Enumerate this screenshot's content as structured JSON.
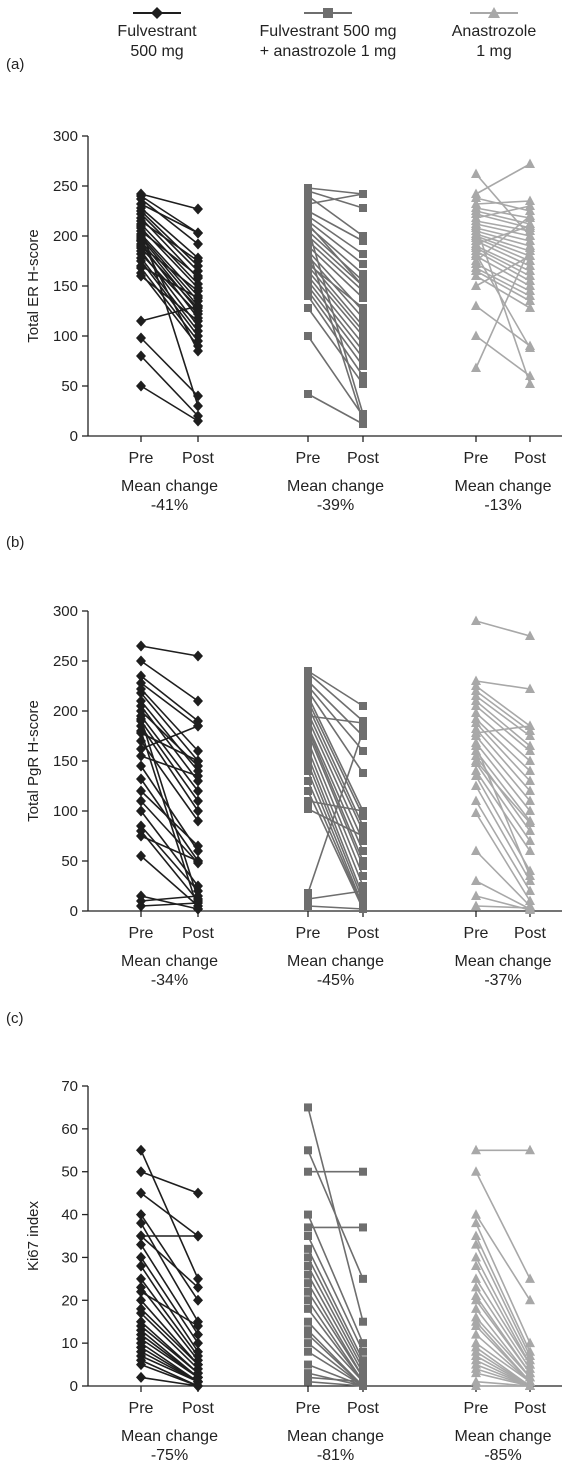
{
  "legend": [
    {
      "line1": "Fulvestrant",
      "line2": "500 mg",
      "marker": "diamond",
      "color": "#1e1e1e"
    },
    {
      "line1": "Fulvestrant 500 mg",
      "line2": "+ anastrozole 1 mg",
      "marker": "square",
      "color": "#6e6e6e"
    },
    {
      "line1": "Anastrozole",
      "line2": "1 mg",
      "marker": "triangle",
      "color": "#a8a8a8"
    }
  ],
  "chart_data": [
    {
      "type": "line",
      "panel": "(a)",
      "ylabel": "Total ER H-score",
      "ylim": [
        0,
        300
      ],
      "yticks": [
        0,
        50,
        100,
        150,
        200,
        250,
        300
      ],
      "categories": [
        "Pre",
        "Post"
      ],
      "groups": [
        {
          "name": "Fulvestrant 500 mg",
          "marker": "diamond",
          "color": "#1e1e1e",
          "mean_change": "-41%",
          "pairs": [
            [
              242,
              227
            ],
            [
              240,
              203
            ],
            [
              237,
              192
            ],
            [
              232,
              203
            ],
            [
              228,
              178
            ],
            [
              225,
              170
            ],
            [
              222,
              165
            ],
            [
              218,
              158
            ],
            [
              215,
              175
            ],
            [
              212,
              152
            ],
            [
              208,
              148
            ],
            [
              205,
              160
            ],
            [
              202,
              140
            ],
            [
              200,
              135
            ],
            [
              198,
              130
            ],
            [
              195,
              125
            ],
            [
              192,
              118
            ],
            [
              190,
              145
            ],
            [
              188,
              128
            ],
            [
              185,
              110
            ],
            [
              182,
              122
            ],
            [
              178,
              105
            ],
            [
              175,
              100
            ],
            [
              170,
              138
            ],
            [
              168,
              95
            ],
            [
              163,
              90
            ],
            [
              160,
              115
            ],
            [
              115,
              130
            ],
            [
              98,
              40
            ],
            [
              80,
              20
            ],
            [
              50,
              15
            ],
            [
              210,
              30
            ],
            [
              196,
              85
            ]
          ]
        },
        {
          "name": "Fulvestrant 500 mg + anastrozole 1 mg",
          "marker": "square",
          "color": "#6e6e6e",
          "mean_change": "-39%",
          "pairs": [
            [
              248,
              242
            ],
            [
              245,
              228
            ],
            [
              240,
              200
            ],
            [
              232,
              242
            ],
            [
              225,
              195
            ],
            [
              220,
              182
            ],
            [
              215,
              172
            ],
            [
              210,
              162
            ],
            [
              205,
              155
            ],
            [
              200,
              150
            ],
            [
              195,
              145
            ],
            [
              190,
              138
            ],
            [
              185,
              125
            ],
            [
              180,
              118
            ],
            [
              175,
              110
            ],
            [
              170,
              105
            ],
            [
              165,
              100
            ],
            [
              160,
              92
            ],
            [
              155,
              85
            ],
            [
              150,
              78
            ],
            [
              145,
              70
            ],
            [
              140,
              60
            ],
            [
              128,
              52
            ],
            [
              100,
              20
            ],
            [
              42,
              12
            ],
            [
              208,
              22
            ],
            [
              188,
              15
            ],
            [
              172,
              128
            ],
            [
              212,
              150
            ]
          ]
        },
        {
          "name": "Anastrozole 1 mg",
          "marker": "triangle",
          "color": "#a8a8a8",
          "mean_change": "-13%",
          "pairs": [
            [
              262,
              200
            ],
            [
              242,
              272
            ],
            [
              238,
              225
            ],
            [
              232,
              235
            ],
            [
              228,
              218
            ],
            [
              225,
              212
            ],
            [
              222,
              208
            ],
            [
              218,
              230
            ],
            [
              215,
              205
            ],
            [
              212,
              200
            ],
            [
              208,
              195
            ],
            [
              205,
              190
            ],
            [
              202,
              185
            ],
            [
              200,
              180
            ],
            [
              198,
              175
            ],
            [
              195,
              170
            ],
            [
              192,
              210
            ],
            [
              190,
              165
            ],
            [
              188,
              160
            ],
            [
              185,
              155
            ],
            [
              180,
              150
            ],
            [
              175,
              220
            ],
            [
              172,
              145
            ],
            [
              168,
              140
            ],
            [
              165,
              135
            ],
            [
              160,
              128
            ],
            [
              150,
              180
            ],
            [
              130,
              90
            ],
            [
              100,
              60
            ],
            [
              68,
              188
            ],
            [
              210,
              52
            ],
            [
              182,
              88
            ]
          ]
        }
      ]
    },
    {
      "type": "line",
      "panel": "(b)",
      "ylabel": "Total PgR H-score",
      "ylim": [
        0,
        300
      ],
      "yticks": [
        0,
        50,
        100,
        150,
        200,
        250,
        300
      ],
      "categories": [
        "Pre",
        "Post"
      ],
      "groups": [
        {
          "name": "Fulvestrant 500 mg",
          "marker": "diamond",
          "color": "#1e1e1e",
          "mean_change": "-34%",
          "pairs": [
            [
              265,
              255
            ],
            [
              250,
              210
            ],
            [
              235,
              190
            ],
            [
              228,
              185
            ],
            [
              222,
              160
            ],
            [
              218,
              150
            ],
            [
              210,
              140
            ],
            [
              205,
              130
            ],
            [
              200,
              145
            ],
            [
              195,
              120
            ],
            [
              190,
              110
            ],
            [
              185,
              100
            ],
            [
              178,
              150
            ],
            [
              170,
              90
            ],
            [
              162,
              185
            ],
            [
              155,
              135
            ],
            [
              145,
              60
            ],
            [
              132,
              50
            ],
            [
              120,
              65
            ],
            [
              110,
              48
            ],
            [
              100,
              25
            ],
            [
              85,
              20
            ],
            [
              80,
              10
            ],
            [
              75,
              50
            ],
            [
              55,
              5
            ],
            [
              15,
              2
            ],
            [
              10,
              15
            ],
            [
              5,
              8
            ],
            [
              192,
              12
            ],
            [
              180,
              2
            ]
          ]
        },
        {
          "name": "Fulvestrant 500 mg + anastrozole 1 mg",
          "marker": "square",
          "color": "#6e6e6e",
          "mean_change": "-45%",
          "pairs": [
            [
              240,
              205
            ],
            [
              238,
              190
            ],
            [
              230,
              175
            ],
            [
              225,
              160
            ],
            [
              220,
              138
            ],
            [
              215,
              100
            ],
            [
              210,
              95
            ],
            [
              205,
              85
            ],
            [
              198,
              80
            ],
            [
              192,
              70
            ],
            [
              185,
              60
            ],
            [
              178,
              45
            ],
            [
              170,
              35
            ],
            [
              162,
              25
            ],
            [
              155,
              15
            ],
            [
              148,
              10
            ],
            [
              140,
              5
            ],
            [
              130,
              3
            ],
            [
              120,
              2
            ],
            [
              110,
              100
            ],
            [
              102,
              75
            ],
            [
              18,
              180
            ],
            [
              12,
              20
            ],
            [
              5,
              2
            ],
            [
              195,
              188
            ],
            [
              182,
              50
            ]
          ]
        },
        {
          "name": "Anastrozole 1 mg",
          "marker": "triangle",
          "color": "#a8a8a8",
          "mean_change": "-37%",
          "pairs": [
            [
              290,
              275
            ],
            [
              230,
              222
            ],
            [
              225,
              185
            ],
            [
              220,
              180
            ],
            [
              215,
              175
            ],
            [
              210,
              165
            ],
            [
              205,
              160
            ],
            [
              198,
              150
            ],
            [
              192,
              140
            ],
            [
              188,
              130
            ],
            [
              182,
              120
            ],
            [
              175,
              110
            ],
            [
              168,
              100
            ],
            [
              160,
              90
            ],
            [
              155,
              80
            ],
            [
              148,
              70
            ],
            [
              140,
              60
            ],
            [
              135,
              40
            ],
            [
              125,
              30
            ],
            [
              110,
              20
            ],
            [
              98,
              10
            ],
            [
              60,
              5
            ],
            [
              30,
              2
            ],
            [
              15,
              1
            ],
            [
              5,
              3
            ],
            [
              178,
              185
            ],
            [
              165,
              35
            ],
            [
              150,
              88
            ]
          ]
        }
      ]
    },
    {
      "type": "line",
      "panel": "(c)",
      "ylabel": "Ki67 index",
      "ylim": [
        0,
        70
      ],
      "yticks": [
        0,
        10,
        20,
        30,
        40,
        50,
        60,
        70
      ],
      "categories": [
        "Pre",
        "Post"
      ],
      "groups": [
        {
          "name": "Fulvestrant 500 mg",
          "marker": "diamond",
          "color": "#1e1e1e",
          "mean_change": "-75%",
          "pairs": [
            [
              55,
              25
            ],
            [
              50,
              45
            ],
            [
              45,
              35
            ],
            [
              40,
              20
            ],
            [
              38,
              15
            ],
            [
              35,
              35
            ],
            [
              33,
              12
            ],
            [
              30,
              10
            ],
            [
              28,
              8
            ],
            [
              25,
              7
            ],
            [
              23,
              6
            ],
            [
              20,
              5
            ],
            [
              18,
              5
            ],
            [
              17,
              4
            ],
            [
              15,
              3
            ],
            [
              14,
              3
            ],
            [
              13,
              2
            ],
            [
              12,
              2
            ],
            [
              11,
              2
            ],
            [
              10,
              1
            ],
            [
              9,
              1
            ],
            [
              8,
              1
            ],
            [
              7,
              1
            ],
            [
              6,
              0
            ],
            [
              5,
              0
            ],
            [
              2,
              0
            ],
            [
              35,
              23
            ],
            [
              22,
              14
            ]
          ]
        },
        {
          "name": "Fulvestrant 500 mg + anastrozole 1 mg",
          "marker": "square",
          "color": "#6e6e6e",
          "mean_change": "-81%",
          "pairs": [
            [
              65,
              15
            ],
            [
              55,
              25
            ],
            [
              50,
              50
            ],
            [
              40,
              10
            ],
            [
              37,
              37
            ],
            [
              35,
              8
            ],
            [
              32,
              6
            ],
            [
              30,
              5
            ],
            [
              28,
              4
            ],
            [
              26,
              3
            ],
            [
              24,
              2
            ],
            [
              22,
              2
            ],
            [
              20,
              1
            ],
            [
              18,
              1
            ],
            [
              15,
              1
            ],
            [
              13,
              0
            ],
            [
              12,
              0
            ],
            [
              10,
              0
            ],
            [
              8,
              0
            ],
            [
              5,
              0
            ],
            [
              3,
              0
            ],
            [
              2,
              1
            ],
            [
              1,
              0
            ]
          ]
        },
        {
          "name": "Anastrozole 1 mg",
          "marker": "triangle",
          "color": "#a8a8a8",
          "mean_change": "-85%",
          "pairs": [
            [
              55,
              55
            ],
            [
              50,
              25
            ],
            [
              40,
              20
            ],
            [
              38,
              10
            ],
            [
              35,
              8
            ],
            [
              33,
              7
            ],
            [
              30,
              6
            ],
            [
              28,
              5
            ],
            [
              25,
              5
            ],
            [
              23,
              4
            ],
            [
              21,
              3
            ],
            [
              20,
              3
            ],
            [
              18,
              2
            ],
            [
              16,
              2
            ],
            [
              15,
              1
            ],
            [
              14,
              1
            ],
            [
              12,
              1
            ],
            [
              10,
              1
            ],
            [
              9,
              0
            ],
            [
              8,
              0
            ],
            [
              7,
              0
            ],
            [
              6,
              0
            ],
            [
              5,
              0
            ],
            [
              4,
              0
            ],
            [
              3,
              0
            ],
            [
              1,
              0
            ],
            [
              0,
              0
            ]
          ]
        }
      ]
    }
  ]
}
